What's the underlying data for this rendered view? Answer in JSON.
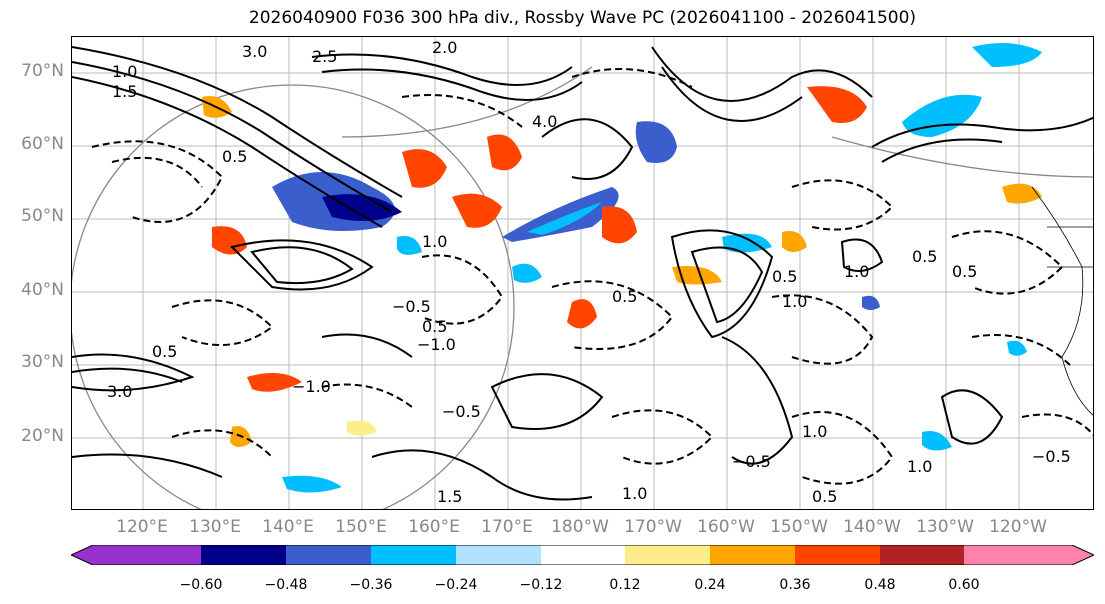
{
  "title": "2026040900 F036 300 hPa div., Rossby Wave PC (2026041100 - 2026041500)",
  "lat_labels": [
    "70°N",
    "60°N",
    "50°N",
    "40°N",
    "30°N",
    "20°N"
  ],
  "lon_labels": [
    "120°E",
    "130°E",
    "140°E",
    "150°E",
    "160°E",
    "170°E",
    "180°W",
    "170°W",
    "160°W",
    "150°W",
    "140°W",
    "130°W",
    "120°W"
  ],
  "colorbar": {
    "ticks": [
      "−0.60",
      "−0.48",
      "−0.36",
      "−0.24",
      "−0.12",
      "0.12",
      "0.24",
      "0.36",
      "0.48",
      "0.60"
    ],
    "colors": [
      "#9932CC",
      "#00008B",
      "#3A5FCD",
      "#00BFFF",
      "#B0E2FF",
      "#FFFFFF",
      "#FFEC8B",
      "#FFA500",
      "#FF4500",
      "#B22222",
      "#FF82AB"
    ]
  },
  "contour_labels": [
    "3.0",
    "2.0",
    "1.0",
    "0.5",
    "−0.5",
    "1.5",
    "−1.0",
    "4.0",
    "2.5",
    "−0.5",
    "1.0",
    "0.5",
    "1.0",
    "0.5",
    "1.0",
    "0.5",
    "0.5",
    "−0.5",
    "1.5",
    "−1.0",
    "3.0",
    "0.5",
    "1.0",
    "0.5",
    "1.0",
    "0.5",
    "1.0",
    "−0.5"
  ]
}
